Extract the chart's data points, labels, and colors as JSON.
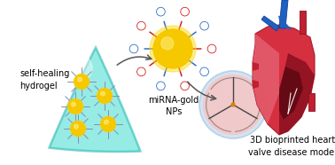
{
  "bg_color": "#ffffff",
  "hydrogel_color": "#40dcd0",
  "hydrogel_edge_color": "#20b5ad",
  "np_core_color": "#f5c800",
  "np_glow_color": "#ffd700",
  "np_ray_red": "#d42020",
  "np_ray_blue": "#3070c0",
  "valve_bg_color": "#f2c8c8",
  "valve_ring_color": "#c8ddf0",
  "valve_line_color": "#444444",
  "arrow_color": "#555555",
  "text_hydrogel": "self-healing\nhydrogel",
  "text_mirna": "miRNA-gold\nNPs",
  "text_heart": "3D bioprinted heart\nvalve disease model",
  "text_fontsize": 7.0
}
